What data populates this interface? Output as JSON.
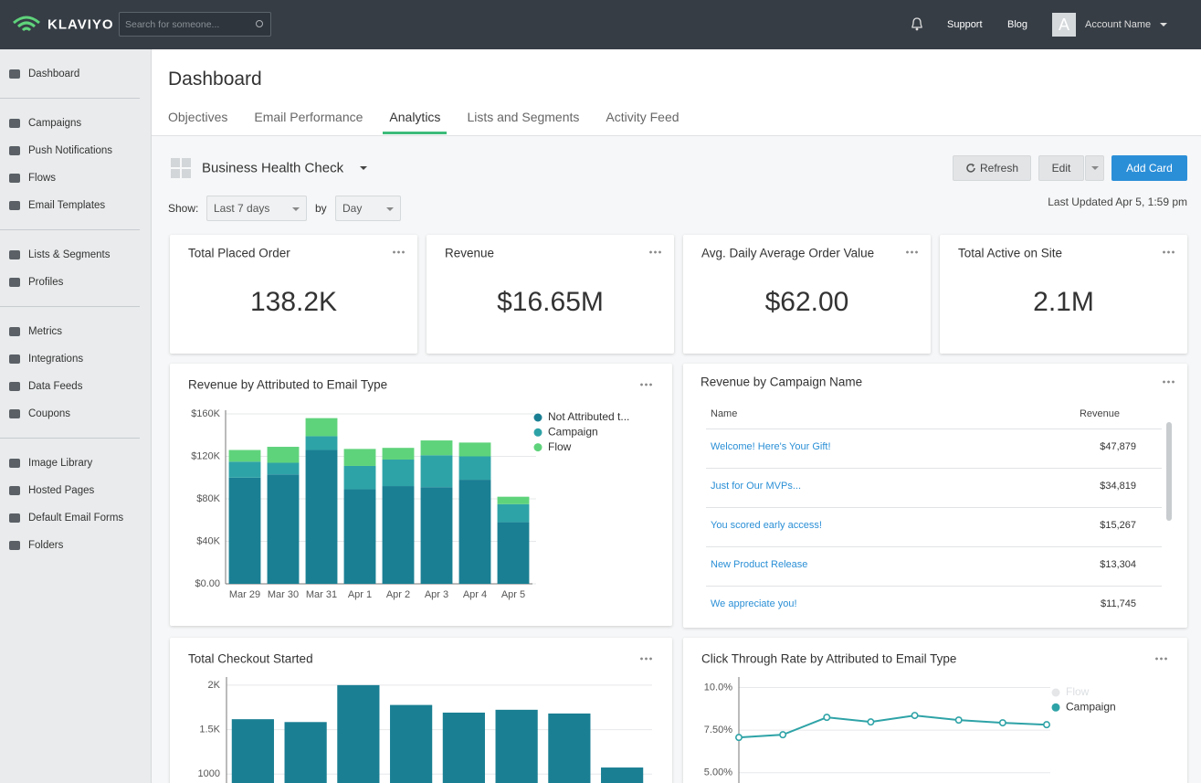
{
  "topbar": {
    "brand": "KLAVIYO",
    "search_placeholder": "Search for someone...",
    "links": [
      "Support",
      "Blog"
    ],
    "avatar": "A",
    "account": "Account Name"
  },
  "sidebar": {
    "groups": [
      [
        "Dashboard"
      ],
      [
        "Campaigns",
        "Push Notifications",
        "Flows",
        "Email Templates"
      ],
      [
        "Lists & Segments",
        "Profiles"
      ],
      [
        "Metrics",
        "Integrations",
        "Data Feeds",
        "Coupons"
      ],
      [
        "Image Library",
        "Hosted Pages",
        "Default Email Forms",
        "Folders"
      ]
    ]
  },
  "header": {
    "title": "Dashboard",
    "tabs": [
      "Objectives",
      "Email Performance",
      "Analytics",
      "Lists and Segments",
      "Activity Feed"
    ],
    "active_tab": 2
  },
  "toolbar": {
    "dashboard_name": "Business Health Check",
    "refresh": "Refresh",
    "edit": "Edit",
    "add": "Add Card",
    "show_label": "Show:",
    "range": "Last 7 days",
    "by_label": "by",
    "interval": "Day",
    "last_updated": "Last Updated Apr 5, 1:59 pm"
  },
  "kpis": [
    {
      "title": "Total Placed Order",
      "value": "138.2K"
    },
    {
      "title": "Revenue",
      "value": "$16.65M"
    },
    {
      "title": "Avg. Daily Average Order Value",
      "value": "$62.00"
    },
    {
      "title": "Total Active on Site",
      "value": "2.1M"
    }
  ],
  "table": {
    "title": "Revenue by Campaign Name",
    "columns": [
      "Name",
      "Revenue"
    ],
    "rows": [
      [
        "Welcome! Here's Your Gift!",
        "$47,879"
      ],
      [
        "Just for Our MVPs...",
        "$34,819"
      ],
      [
        "You scored early access!",
        "$15,267"
      ],
      [
        "New Product Release",
        "$13,304"
      ],
      [
        "We appreciate you!",
        "$11,745"
      ]
    ]
  },
  "chart_data": [
    {
      "type": "stacked_bar",
      "title": "Revenue by Attributed to Email Type",
      "categories": [
        "Mar 29",
        "Mar 30",
        "Mar 31",
        "Apr 1",
        "Apr 2",
        "Apr 3",
        "Apr 4",
        "Apr 5"
      ],
      "series": [
        {
          "name": "Not Attributed t...",
          "color": "#1a7f93",
          "values": [
            100000,
            103000,
            126000,
            89000,
            92000,
            91000,
            98000,
            58000
          ]
        },
        {
          "name": "Campaign",
          "color": "#2ea3a7",
          "values": [
            15000,
            11000,
            13000,
            22000,
            25000,
            30000,
            22000,
            17000
          ]
        },
        {
          "name": "Flow",
          "color": "#5fd37b",
          "values": [
            11000,
            15000,
            17000,
            16000,
            11000,
            14000,
            13000,
            7000
          ]
        }
      ],
      "ylim": [
        0,
        160000
      ],
      "yticks": [
        {
          "value": 0,
          "label": "$0.00"
        },
        {
          "value": 40000,
          "label": "$40K"
        },
        {
          "value": 80000,
          "label": "$80K"
        },
        {
          "value": 120000,
          "label": "$120K"
        },
        {
          "value": 160000,
          "label": "$160K"
        }
      ],
      "grid": true
    },
    {
      "type": "bar",
      "title": "Total Checkout Started",
      "values": [
        1617,
        1585,
        2000,
        1777,
        1691,
        1723,
        1681,
        1074
      ],
      "color": "#1a7f93",
      "ylim": [
        900,
        2050
      ],
      "yticks": [
        1000,
        {
          "value": 1500,
          "label": "1.5K"
        },
        {
          "value": 2000,
          "label": "2K"
        }
      ],
      "grid": true
    },
    {
      "type": "line",
      "title": "Click Through Rate by Attributed to Email Type",
      "series": [
        {
          "name": "Flow",
          "color": "#e4e6e8",
          "hidden": true,
          "values": [
            null,
            null,
            null,
            null,
            null,
            null,
            null,
            null
          ]
        },
        {
          "name": "Campaign",
          "color": "#2ea3a7",
          "values": [
            7.07,
            7.23,
            8.25,
            7.98,
            8.36,
            8.09,
            7.93,
            7.82
          ]
        }
      ],
      "ylim": [
        4.4,
        10.4
      ],
      "yticks": [
        {
          "value": 5,
          "label": "5.00%"
        },
        {
          "value": 7.5,
          "label": "7.50%"
        },
        {
          "value": 10,
          "label": "10.0%"
        }
      ],
      "grid": true
    }
  ]
}
